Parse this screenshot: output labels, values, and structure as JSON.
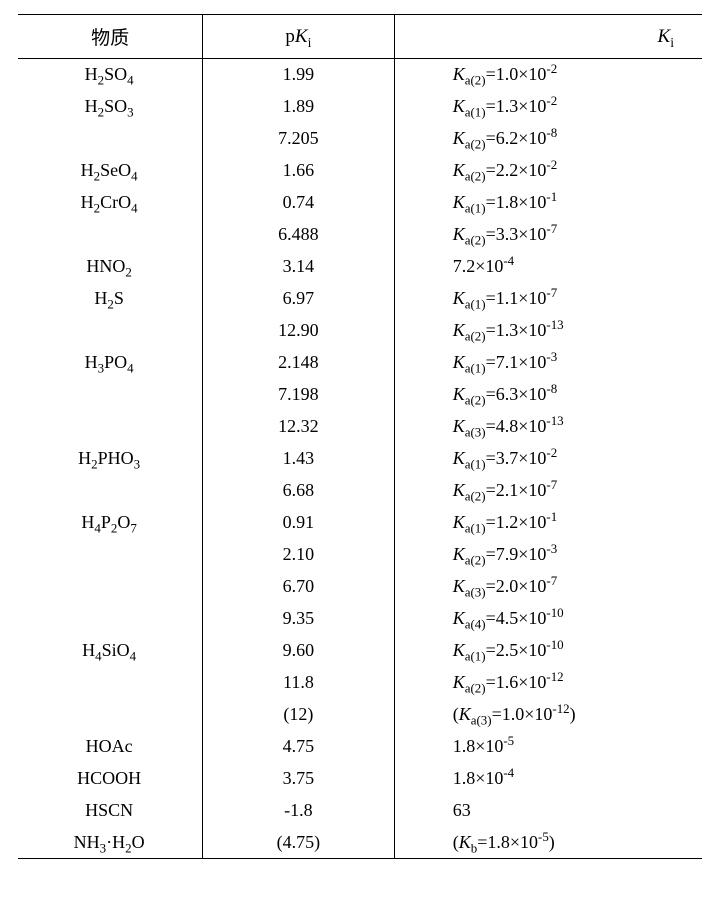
{
  "header": {
    "substance": "物质",
    "pki_html": "p<span class='ital'>K</span><sub>i</sub>",
    "ki_html": "<span class='ital'>K</span><sub>i</sub>"
  },
  "rows": [
    {
      "sub_html": "H<sub>2</sub>SO<sub>4</sub>",
      "pki": "1.99",
      "ki_html": "<span class='ital'>K</span><sub>a(2)</sub>=1.0×10<sup>-2</sup>"
    },
    {
      "sub_html": "H<sub>2</sub>SO<sub>3</sub>",
      "pki": "1.89",
      "ki_html": "<span class='ital'>K</span><sub>a(1)</sub>=1.3×10<sup>-2</sup>"
    },
    {
      "sub_html": "",
      "pki": "7.205",
      "ki_html": "<span class='ital'>K</span><sub>a(2)</sub>=6.2×10<sup>-8</sup>"
    },
    {
      "sub_html": "H<sub>2</sub>SeO<sub>4</sub>",
      "pki": "1.66",
      "ki_html": "<span class='ital'>K</span><sub>a(2)</sub>=2.2×10<sup>-2</sup>"
    },
    {
      "sub_html": "H<sub>2</sub>CrO<sub>4</sub>",
      "pki": "0.74",
      "ki_html": "<span class='ital'>K</span><sub>a(1)</sub>=1.8×10<sup>-1</sup>"
    },
    {
      "sub_html": "",
      "pki": "6.488",
      "ki_html": "<span class='ital'>K</span><sub>a(2)</sub>=3.3×10<sup>-7</sup>"
    },
    {
      "sub_html": "HNO<sub>2</sub>",
      "pki": "3.14",
      "ki_html": "7.2×10<sup>-4</sup>"
    },
    {
      "sub_html": "H<sub>2</sub>S",
      "pki": "6.97",
      "ki_html": "<span class='ital'>K</span><sub>a(1)</sub>=1.1×10<sup>-7</sup>"
    },
    {
      "sub_html": "",
      "pki": "12.90",
      "ki_html": "<span class='ital'>K</span><sub>a(2)</sub>=1.3×10<sup>-13</sup>"
    },
    {
      "sub_html": "H<sub>3</sub>PO<sub>4</sub>",
      "pki": "2.148",
      "ki_html": "<span class='ital'>K</span><sub>a(1)</sub>=7.1×10<sup>-3</sup>"
    },
    {
      "sub_html": "",
      "pki": "7.198",
      "ki_html": "<span class='ital'>K</span><sub>a(2)</sub>=6.3×10<sup>-8</sup>"
    },
    {
      "sub_html": "",
      "pki": "12.32",
      "ki_html": "<span class='ital'>K</span><sub>a(3)</sub>=4.8×10<sup>-13</sup>"
    },
    {
      "sub_html": "H<sub>2</sub>PHO<sub>3</sub>",
      "pki": "1.43",
      "ki_html": "<span class='ital'>K</span><sub>a(1)</sub>=3.7×10<sup>-2</sup>"
    },
    {
      "sub_html": "",
      "pki": "6.68",
      "ki_html": "<span class='ital'>K</span><sub>a(2)</sub>=2.1×10<sup>-7</sup>"
    },
    {
      "sub_html": "H<sub>4</sub>P<sub>2</sub>O<sub>7</sub>",
      "pki": "0.91",
      "ki_html": "<span class='ital'>K</span><sub>a(1)</sub>=1.2×10<sup>-1</sup>"
    },
    {
      "sub_html": "",
      "pki": "2.10",
      "ki_html": "<span class='ital'>K</span><sub>a(2)</sub>=7.9×10<sup>-3</sup>"
    },
    {
      "sub_html": "",
      "pki": "6.70",
      "ki_html": "<span class='ital'>K</span><sub>a(3)</sub>=2.0×10<sup>-7</sup>"
    },
    {
      "sub_html": "",
      "pki": "9.35",
      "ki_html": "<span class='ital'>K</span><sub>a(4)</sub>=4.5×10<sup>-10</sup>"
    },
    {
      "sub_html": "H<sub>4</sub>SiO<sub>4</sub>",
      "pki": "9.60",
      "ki_html": "<span class='ital'>K</span><sub>a(1)</sub>=2.5×10<sup>-10</sup>"
    },
    {
      "sub_html": "",
      "pki": "11.8",
      "ki_html": "<span class='ital'>K</span><sub>a(2)</sub>=1.6×10<sup>-12</sup>"
    },
    {
      "sub_html": "",
      "pki": "(12)",
      "ki_html": "(<span class='ital'>K</span><sub>a(3)</sub>=1.0×10<sup>-12</sup>)"
    },
    {
      "sub_html": "HOAc",
      "pki": "4.75",
      "ki_html": "1.8×10<sup>-5</sup>"
    },
    {
      "sub_html": "HCOOH",
      "pki": "3.75",
      "ki_html": "1.8×10<sup>-4</sup>"
    },
    {
      "sub_html": "HSCN",
      "pki": "-1.8",
      "ki_html": "63"
    },
    {
      "sub_html": "NH<sub>3</sub>·H<sub>2</sub>O",
      "pki": "(4.75)",
      "ki_html": "(<span class='ital'>K</span><sub>b</sub>=1.8×10<sup>-5</sup>)"
    }
  ]
}
